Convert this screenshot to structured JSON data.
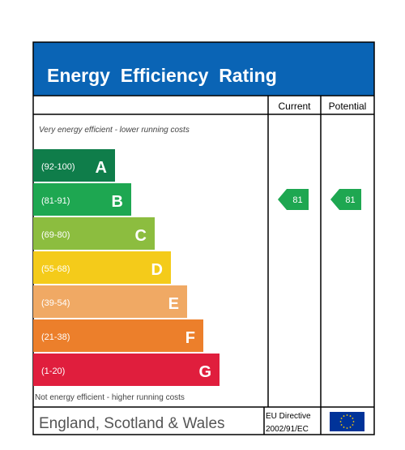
{
  "chart_data": {
    "type": "bar",
    "title": "Energy  Efficiency  Rating",
    "column_headers": [
      "Current",
      "Potential"
    ],
    "top_note": "Very energy efficient - lower running costs",
    "bottom_note": "Not energy efficient - higher running costs",
    "bands": [
      {
        "range": "(92-100)",
        "letter": "A",
        "color": "#0f7d4a"
      },
      {
        "range": "(81-91)",
        "letter": "B",
        "color": "#1ea751"
      },
      {
        "range": "(69-80)",
        "letter": "C",
        "color": "#8cbd3f"
      },
      {
        "range": "(55-68)",
        "letter": "D",
        "color": "#f4cb1a"
      },
      {
        "range": "(39-54)",
        "letter": "E",
        "color": "#f0a964"
      },
      {
        "range": "(21-38)",
        "letter": "F",
        "color": "#ec7f2b"
      },
      {
        "range": "(1-20)",
        "letter": "G",
        "color": "#e01e3d"
      }
    ],
    "current": {
      "value": 81,
      "band": "B",
      "color": "#1ea751"
    },
    "potential": {
      "value": 81,
      "band": "B",
      "color": "#1ea751"
    }
  },
  "footer": {
    "region": "England, Scotland & Wales",
    "directive_line1": "EU Directive",
    "directive_line2": "2002/91/EC"
  },
  "colors": {
    "header_bg": "#0a64b5",
    "border": "#000000",
    "eu_flag": "#003399",
    "eu_star": "#ffcc00"
  }
}
